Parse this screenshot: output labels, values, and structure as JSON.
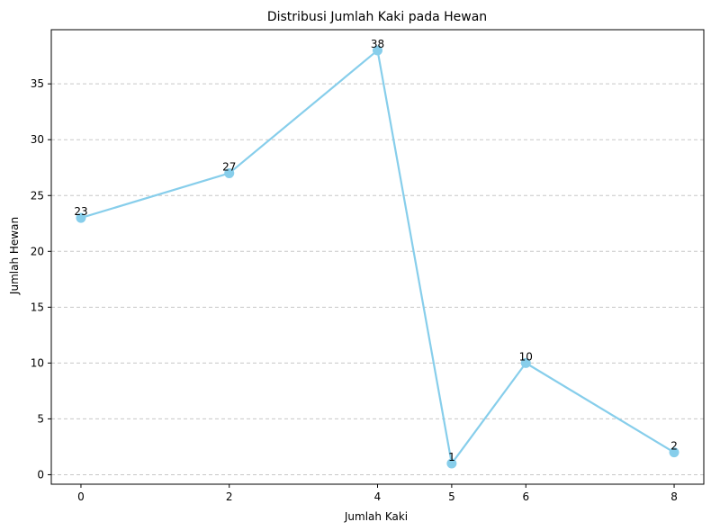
{
  "chart_data": {
    "type": "line",
    "title": "Distribusi Jumlah Kaki pada Hewan",
    "xlabel": "Jumlah Kaki",
    "ylabel": "Jumlah Hewan",
    "x": [
      0,
      2,
      4,
      5,
      6,
      8
    ],
    "y": [
      23,
      27,
      38,
      1,
      10,
      2
    ],
    "data_labels": [
      "23",
      "27",
      "38",
      "1",
      "10",
      "2"
    ],
    "xticks": [
      "0",
      "2",
      "4",
      "5",
      "6",
      "8"
    ],
    "yticks": [
      "0",
      "5",
      "10",
      "15",
      "20",
      "25",
      "30",
      "35"
    ],
    "xlim": [
      -0.4,
      8.4
    ],
    "ylim": [
      -0.85,
      39.85
    ],
    "grid": "y-dashed",
    "legend": "none",
    "colors": {
      "line": "#87CEEB",
      "marker": "#87CEEB",
      "grid": "#c8c8c8"
    }
  }
}
